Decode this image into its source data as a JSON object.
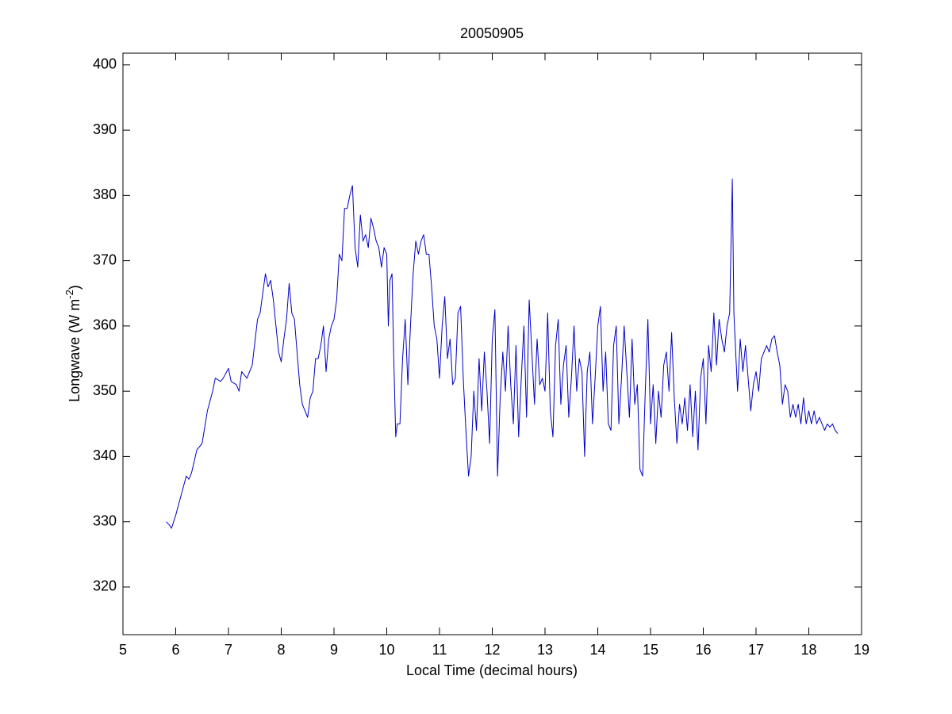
{
  "chart_data": {
    "type": "line",
    "title": "20050905",
    "xlabel": "Local Time (decimal hours)",
    "ylabel": {
      "text": "Longwave (W m",
      "superscript": "-2",
      "suffix": ")"
    },
    "xlim": [
      5,
      19
    ],
    "ylim": [
      312.7,
      401.8
    ],
    "xticks": [
      5,
      6,
      7,
      8,
      9,
      10,
      11,
      12,
      13,
      14,
      15,
      16,
      17,
      18,
      19
    ],
    "yticks": [
      320,
      330,
      340,
      350,
      360,
      370,
      380,
      390,
      400
    ],
    "grid": false,
    "series": [
      {
        "color": "#0000c8",
        "x": [
          5.82,
          5.88,
          5.92,
          6.0,
          6.1,
          6.2,
          6.25,
          6.3,
          6.4,
          6.5,
          6.6,
          6.7,
          6.75,
          6.85,
          6.9,
          7.0,
          7.05,
          7.15,
          7.2,
          7.25,
          7.35,
          7.45,
          7.55,
          7.6,
          7.65,
          7.7,
          7.75,
          7.8,
          7.85,
          7.9,
          7.95,
          8.0,
          8.05,
          8.1,
          8.15,
          8.2,
          8.25,
          8.3,
          8.35,
          8.4,
          8.45,
          8.5,
          8.55,
          8.6,
          8.65,
          8.7,
          8.75,
          8.8,
          8.85,
          8.9,
          8.95,
          9.0,
          9.05,
          9.1,
          9.15,
          9.2,
          9.25,
          9.3,
          9.35,
          9.4,
          9.45,
          9.5,
          9.55,
          9.6,
          9.65,
          9.7,
          9.75,
          9.8,
          9.85,
          9.9,
          9.95,
          10.0,
          10.03,
          10.06,
          10.1,
          10.13,
          10.17,
          10.2,
          10.25,
          10.3,
          10.35,
          10.4,
          10.45,
          10.5,
          10.55,
          10.6,
          10.65,
          10.7,
          10.75,
          10.8,
          10.85,
          10.9,
          10.95,
          11.0,
          11.05,
          11.1,
          11.15,
          11.2,
          11.25,
          11.3,
          11.35,
          11.4,
          11.45,
          11.5,
          11.55,
          11.6,
          11.65,
          11.7,
          11.75,
          11.8,
          11.85,
          11.9,
          11.95,
          12.0,
          12.05,
          12.1,
          12.15,
          12.2,
          12.25,
          12.3,
          12.35,
          12.4,
          12.45,
          12.5,
          12.55,
          12.6,
          12.65,
          12.7,
          12.75,
          12.8,
          12.85,
          12.9,
          12.95,
          13.0,
          13.05,
          13.1,
          13.15,
          13.2,
          13.25,
          13.3,
          13.35,
          13.4,
          13.45,
          13.5,
          13.55,
          13.6,
          13.65,
          13.7,
          13.75,
          13.8,
          13.85,
          13.9,
          13.95,
          14.0,
          14.05,
          14.1,
          14.15,
          14.2,
          14.25,
          14.3,
          14.35,
          14.4,
          14.45,
          14.5,
          14.55,
          14.6,
          14.65,
          14.7,
          14.75,
          14.8,
          14.85,
          14.9,
          14.95,
          15.0,
          15.05,
          15.1,
          15.15,
          15.2,
          15.25,
          15.3,
          15.35,
          15.4,
          15.45,
          15.5,
          15.55,
          15.6,
          15.65,
          15.7,
          15.75,
          15.8,
          15.85,
          15.9,
          15.95,
          16.0,
          16.05,
          16.1,
          16.15,
          16.2,
          16.25,
          16.3,
          16.35,
          16.4,
          16.45,
          16.5,
          16.55,
          16.58,
          16.62,
          16.65,
          16.7,
          16.75,
          16.8,
          16.85,
          16.9,
          16.95,
          17.0,
          17.05,
          17.1,
          17.15,
          17.2,
          17.25,
          17.3,
          17.35,
          17.4,
          17.45,
          17.5,
          17.55,
          17.6,
          17.65,
          17.7,
          17.75,
          17.8,
          17.85,
          17.9,
          17.95,
          18.0,
          18.05,
          18.1,
          18.15,
          18.2,
          18.25,
          18.3,
          18.35,
          18.4,
          18.45,
          18.5,
          18.55
        ],
        "values": [
          330,
          329.5,
          329,
          331,
          334,
          337,
          336.5,
          337.5,
          341,
          342,
          347,
          350,
          352,
          351.5,
          352,
          353.5,
          351.5,
          351,
          350,
          353,
          352,
          354,
          361,
          362,
          365,
          368,
          366,
          367,
          364,
          360,
          356,
          354.5,
          358,
          361,
          366.5,
          362,
          361,
          356,
          351,
          348,
          347,
          346,
          349,
          350,
          355,
          355,
          357,
          360,
          353,
          358,
          360,
          361,
          364,
          371,
          370,
          378,
          378,
          380,
          381.5,
          372,
          369,
          377,
          373,
          374,
          372,
          376.5,
          375,
          373,
          372,
          369,
          372,
          371,
          360,
          367,
          368,
          356,
          343,
          345,
          345,
          355,
          361,
          351,
          360,
          368,
          373,
          371,
          373,
          374,
          371,
          371,
          366,
          360,
          358,
          352,
          360,
          364.5,
          355,
          358,
          351,
          352,
          362,
          363,
          352,
          344,
          337,
          340,
          350,
          344,
          355,
          347,
          356,
          350,
          342,
          358,
          362.5,
          337,
          349,
          356,
          350,
          360,
          351,
          345,
          357,
          343,
          352,
          360,
          346,
          364,
          356,
          348,
          358,
          351,
          352,
          350,
          362,
          347,
          343,
          357,
          361,
          348,
          354,
          357,
          346,
          352,
          360,
          350,
          355,
          353,
          340,
          353,
          356,
          345,
          352,
          360,
          363,
          350,
          356,
          345,
          344,
          357,
          360,
          345,
          352,
          360,
          353,
          346,
          358,
          348,
          351,
          338,
          337,
          350,
          361,
          345,
          351,
          342,
          350,
          346,
          354,
          356,
          350,
          359,
          349,
          342,
          348,
          345,
          349,
          344,
          351,
          343,
          350,
          341,
          352,
          355,
          345,
          357,
          353,
          362,
          354,
          361,
          358,
          356,
          360,
          362,
          382.5,
          362,
          355,
          350,
          358,
          353,
          357,
          352,
          347,
          351,
          353,
          350,
          355,
          356,
          357,
          356,
          358,
          358.5,
          356,
          354,
          348,
          351,
          350,
          346,
          348,
          346,
          348,
          345,
          349,
          345,
          347,
          345,
          347,
          345,
          346,
          345,
          344,
          345,
          344.5,
          345,
          344,
          343.5
        ]
      }
    ]
  }
}
